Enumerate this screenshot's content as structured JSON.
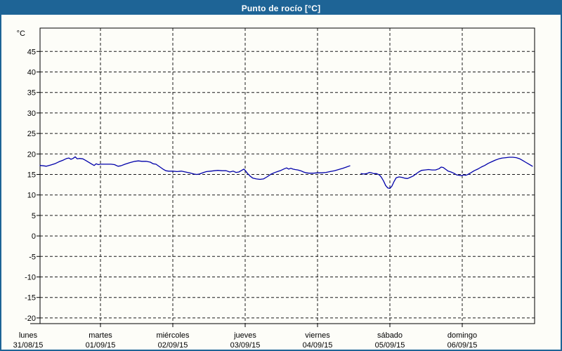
{
  "window": {
    "title": "Punto de rocío [°C]"
  },
  "colors": {
    "header_bg": "#1e6496",
    "header_text": "#ffffff",
    "border": "#1e6496",
    "panel_bg": "#fdfdf8",
    "grid": "#1a1a1a",
    "axis": "#000000",
    "line": "#0000aa",
    "label": "#000000"
  },
  "chart_data": {
    "type": "line",
    "title": "Punto de rocío [°C]",
    "ylabel": "°C",
    "y_unit_label": "°C",
    "ylim": [
      -20,
      50
    ],
    "y_ticks": [
      45,
      40,
      35,
      30,
      25,
      20,
      15,
      10,
      5,
      0,
      -5,
      -10,
      -15,
      -20
    ],
    "grid": true,
    "legend_position": "none",
    "x_days": [
      {
        "label": "lunes",
        "date": "31/08/15"
      },
      {
        "label": "martes",
        "date": "01/09/15"
      },
      {
        "label": "miércoles",
        "date": "02/09/15"
      },
      {
        "label": "jueves",
        "date": "03/09/15"
      },
      {
        "label": "viernes",
        "date": "04/09/15"
      },
      {
        "label": "sábado",
        "date": "05/09/15"
      },
      {
        "label": "domingo",
        "date": "06/09/15"
      }
    ],
    "series": [
      {
        "name": "Punto de rocío",
        "color": "#0000aa",
        "unit": "°C",
        "segments": [
          [
            [
              0.165,
              17.2
            ],
            [
              0.214,
              17.1
            ],
            [
              0.252,
              17.0
            ],
            [
              0.311,
              17.3
            ],
            [
              0.369,
              17.6
            ],
            [
              0.427,
              18.1
            ],
            [
              0.485,
              18.5
            ],
            [
              0.534,
              18.9
            ],
            [
              0.563,
              19.0
            ],
            [
              0.592,
              18.7
            ],
            [
              0.621,
              18.9
            ],
            [
              0.65,
              19.3
            ],
            [
              0.68,
              18.8
            ],
            [
              0.709,
              18.9
            ],
            [
              0.757,
              18.8
            ],
            [
              0.796,
              18.4
            ],
            [
              0.845,
              17.9
            ],
            [
              0.883,
              17.5
            ],
            [
              0.913,
              17.2
            ],
            [
              0.942,
              17.6
            ],
            [
              0.971,
              17.4
            ],
            [
              1.0,
              17.5
            ],
            [
              1.068,
              17.5
            ],
            [
              1.146,
              17.5
            ],
            [
              1.194,
              17.4
            ],
            [
              1.243,
              17.0
            ],
            [
              1.282,
              17.1
            ],
            [
              1.34,
              17.5
            ],
            [
              1.408,
              17.9
            ],
            [
              1.476,
              18.2
            ],
            [
              1.524,
              18.3
            ],
            [
              1.573,
              18.2
            ],
            [
              1.631,
              18.2
            ],
            [
              1.689,
              18.0
            ],
            [
              1.728,
              17.6
            ],
            [
              1.767,
              17.5
            ],
            [
              1.816,
              16.9
            ],
            [
              1.864,
              16.3
            ],
            [
              1.903,
              15.9
            ],
            [
              1.942,
              15.8
            ],
            [
              2.0,
              15.8
            ],
            [
              2.058,
              15.7
            ],
            [
              2.117,
              15.8
            ],
            [
              2.175,
              15.6
            ],
            [
              2.233,
              15.4
            ],
            [
              2.291,
              15.1
            ],
            [
              2.33,
              15.0
            ],
            [
              2.369,
              15.1
            ],
            [
              2.427,
              15.5
            ],
            [
              2.466,
              15.7
            ],
            [
              2.524,
              15.8
            ],
            [
              2.573,
              15.9
            ],
            [
              2.621,
              16.0
            ],
            [
              2.68,
              15.9
            ],
            [
              2.738,
              15.9
            ],
            [
              2.786,
              15.6
            ],
            [
              2.835,
              15.8
            ],
            [
              2.874,
              15.5
            ],
            [
              2.913,
              15.6
            ],
            [
              2.951,
              16.0
            ],
            [
              2.981,
              16.3
            ],
            [
              3.0,
              16.0
            ],
            [
              3.029,
              15.3
            ],
            [
              3.068,
              14.6
            ],
            [
              3.107,
              14.1
            ],
            [
              3.155,
              13.9
            ],
            [
              3.204,
              13.8
            ],
            [
              3.252,
              13.9
            ],
            [
              3.301,
              14.4
            ],
            [
              3.35,
              15.0
            ],
            [
              3.398,
              15.4
            ],
            [
              3.447,
              15.7
            ],
            [
              3.495,
              16.0
            ],
            [
              3.544,
              16.4
            ],
            [
              3.573,
              16.6
            ],
            [
              3.602,
              16.3
            ],
            [
              3.631,
              16.5
            ],
            [
              3.66,
              16.3
            ],
            [
              3.689,
              16.2
            ],
            [
              3.728,
              16.1
            ],
            [
              3.767,
              15.9
            ],
            [
              3.806,
              15.6
            ],
            [
              3.845,
              15.4
            ],
            [
              3.883,
              15.3
            ],
            [
              3.942,
              15.3
            ],
            [
              4.0,
              15.4
            ],
            [
              4.058,
              15.4
            ],
            [
              4.117,
              15.5
            ],
            [
              4.175,
              15.7
            ],
            [
              4.233,
              15.9
            ],
            [
              4.291,
              16.2
            ],
            [
              4.35,
              16.5
            ],
            [
              4.398,
              16.8
            ],
            [
              4.447,
              17.1
            ]
          ],
          [
            [
              4.602,
              15.2
            ],
            [
              4.641,
              15.1
            ],
            [
              4.68,
              15.2
            ],
            [
              4.718,
              15.5
            ],
            [
              4.748,
              15.4
            ],
            [
              4.777,
              15.2
            ],
            [
              4.816,
              15.2
            ],
            [
              4.854,
              14.9
            ],
            [
              4.883,
              14.3
            ],
            [
              4.913,
              13.4
            ],
            [
              4.942,
              12.3
            ],
            [
              4.971,
              11.7
            ],
            [
              5.0,
              11.6
            ],
            [
              5.029,
              12.2
            ],
            [
              5.058,
              13.3
            ],
            [
              5.087,
              14.2
            ],
            [
              5.126,
              14.4
            ],
            [
              5.165,
              14.3
            ],
            [
              5.204,
              14.1
            ],
            [
              5.243,
              14.0
            ],
            [
              5.282,
              14.3
            ],
            [
              5.32,
              14.6
            ],
            [
              5.359,
              15.1
            ],
            [
              5.398,
              15.6
            ],
            [
              5.437,
              16.0
            ],
            [
              5.485,
              16.1
            ],
            [
              5.534,
              16.2
            ],
            [
              5.583,
              16.1
            ],
            [
              5.631,
              16.1
            ],
            [
              5.68,
              16.4
            ],
            [
              5.709,
              16.8
            ],
            [
              5.738,
              16.7
            ],
            [
              5.767,
              16.3
            ],
            [
              5.806,
              15.8
            ],
            [
              5.845,
              15.6
            ],
            [
              5.883,
              15.3
            ],
            [
              5.922,
              14.9
            ],
            [
              5.961,
              14.8
            ],
            [
              5.99,
              14.7
            ],
            [
              6.019,
              14.9
            ],
            [
              6.049,
              14.8
            ],
            [
              6.078,
              15.0
            ],
            [
              6.117,
              15.4
            ],
            [
              6.165,
              15.9
            ],
            [
              6.214,
              16.3
            ],
            [
              6.262,
              16.8
            ],
            [
              6.311,
              17.2
            ],
            [
              6.359,
              17.7
            ],
            [
              6.408,
              18.1
            ],
            [
              6.456,
              18.5
            ],
            [
              6.505,
              18.8
            ],
            [
              6.553,
              19.0
            ],
            [
              6.602,
              19.1
            ],
            [
              6.65,
              19.2
            ],
            [
              6.699,
              19.2
            ],
            [
              6.748,
              19.1
            ],
            [
              6.796,
              18.8
            ],
            [
              6.835,
              18.4
            ],
            [
              6.874,
              18.0
            ],
            [
              6.913,
              17.6
            ],
            [
              6.951,
              17.2
            ],
            [
              6.97,
              17.0
            ]
          ]
        ]
      }
    ]
  }
}
